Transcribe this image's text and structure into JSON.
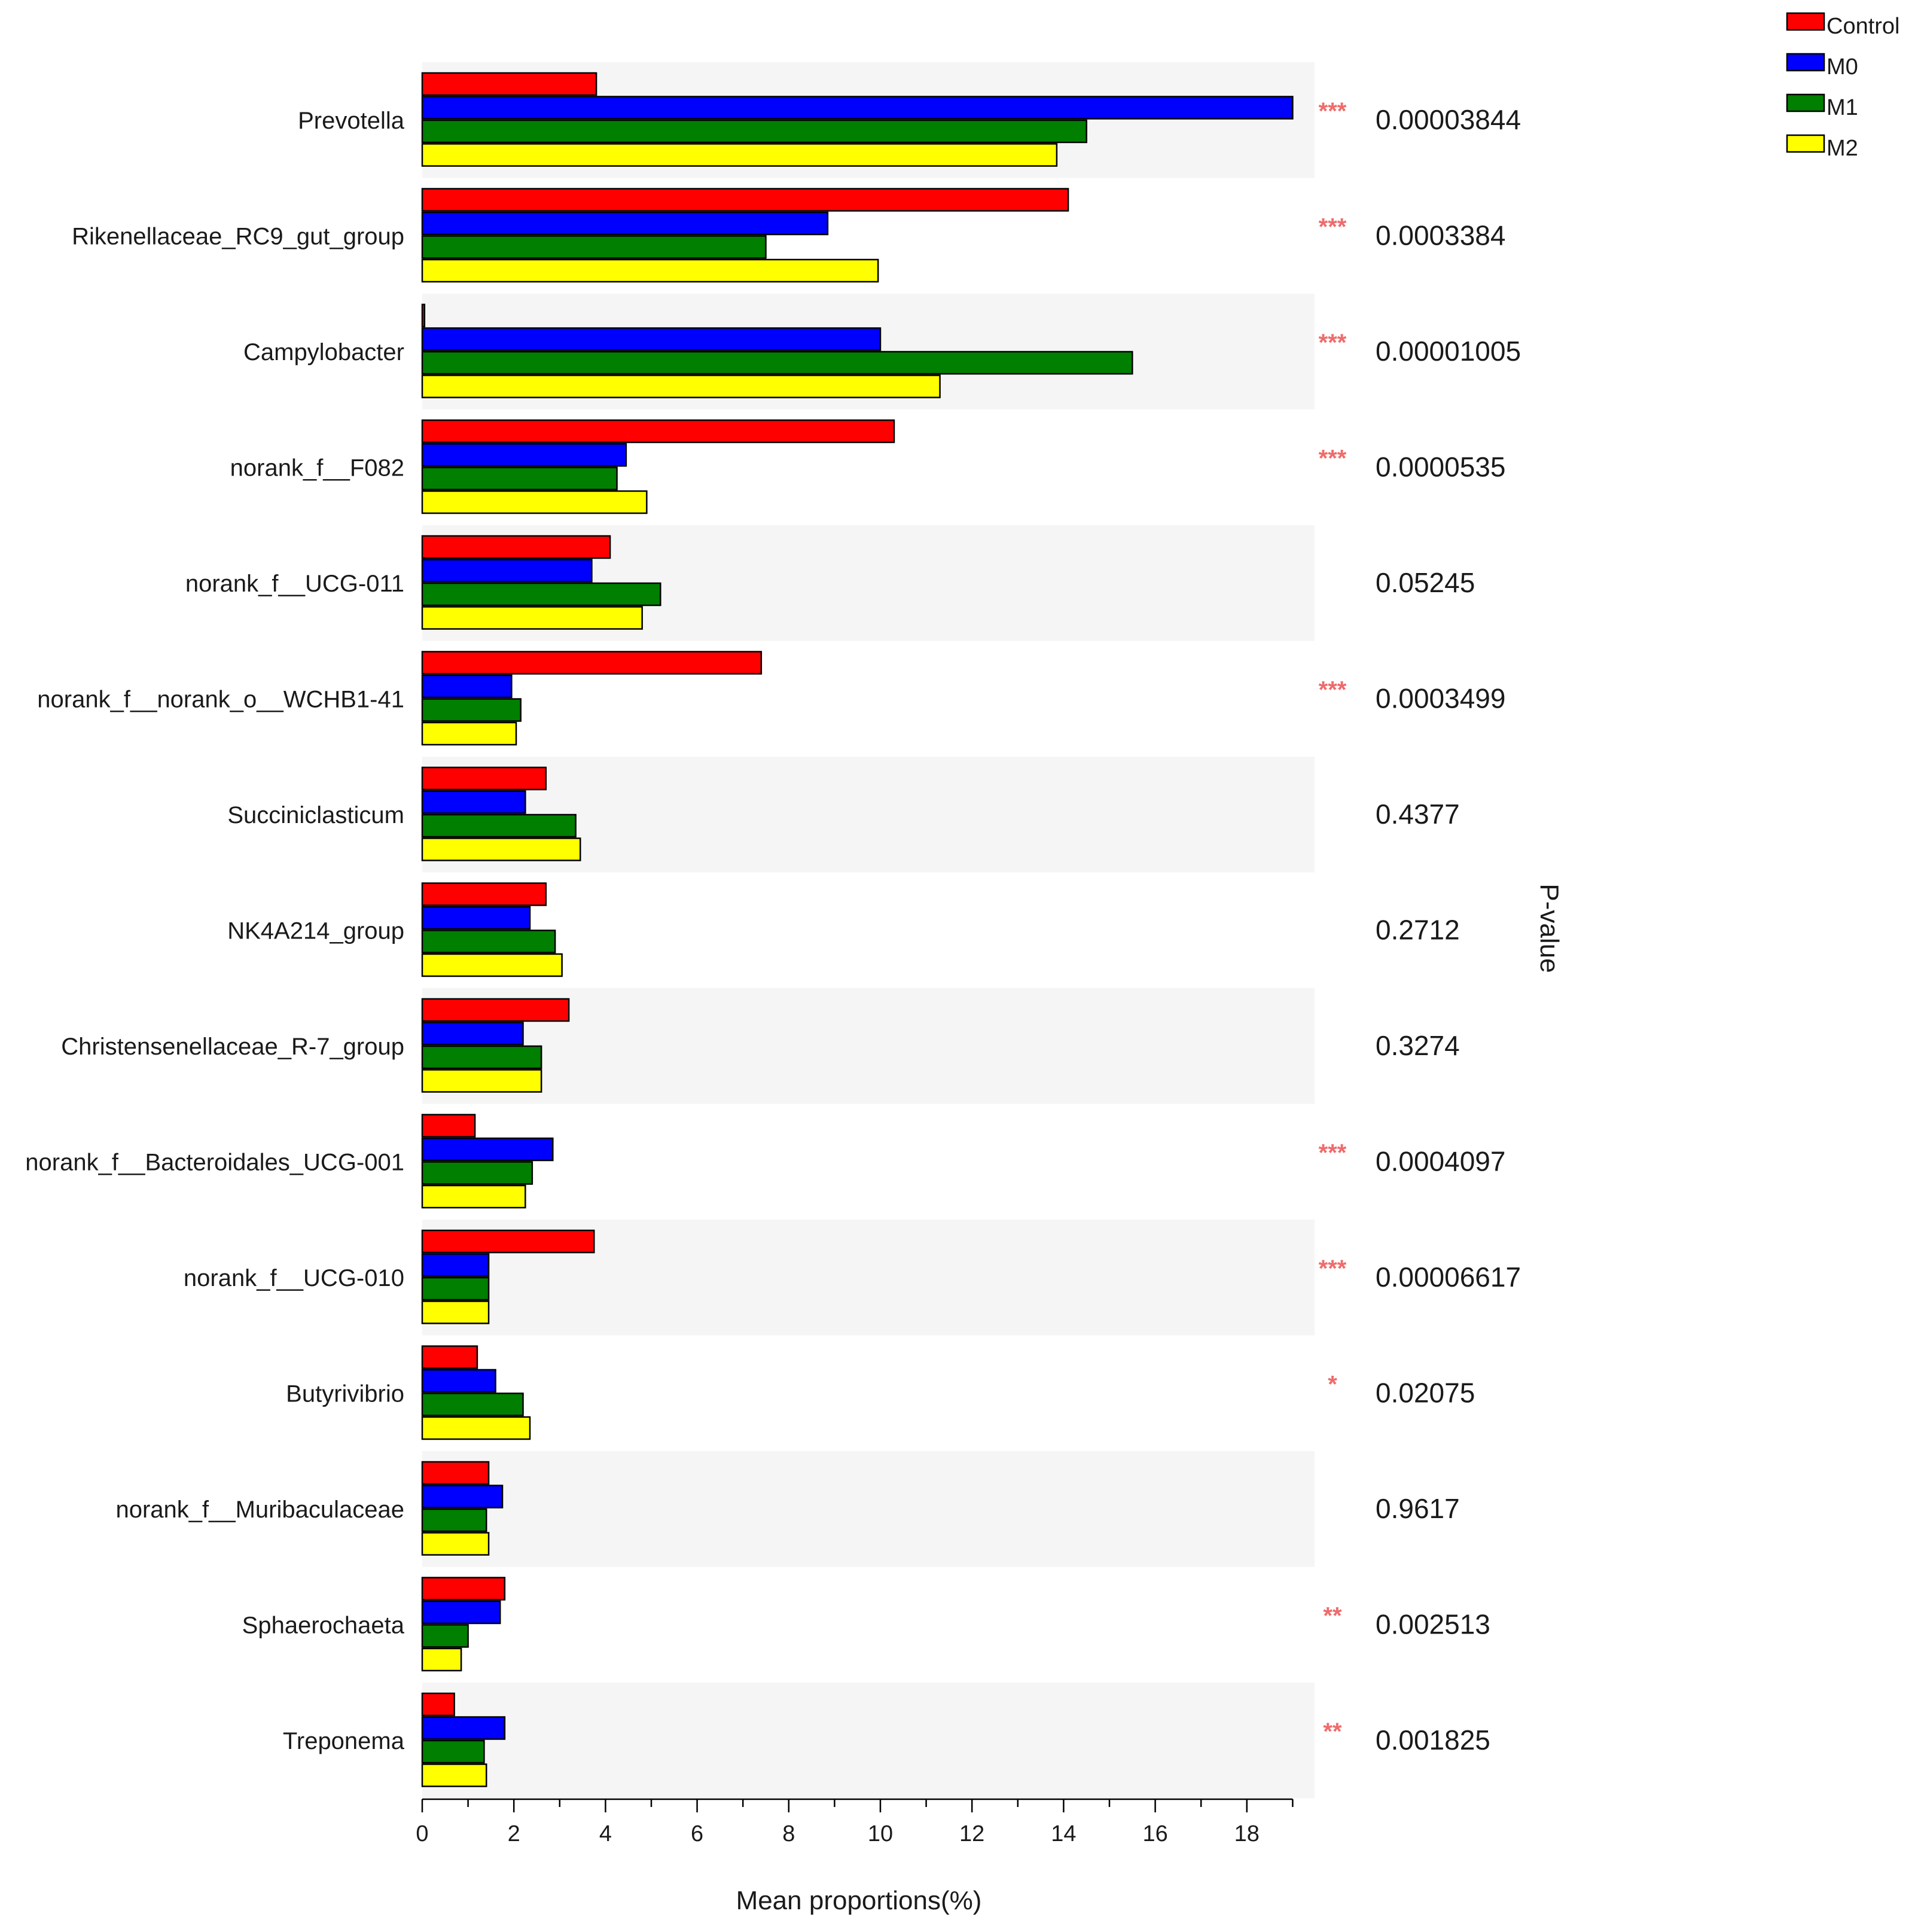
{
  "chart_data": {
    "type": "bar",
    "orientation": "horizontal",
    "xlabel": "Mean proportions(%)",
    "right_axis_label": "P-value",
    "xlim": [
      0,
      19
    ],
    "xticks": [
      0,
      2,
      4,
      6,
      8,
      10,
      12,
      14,
      16,
      18
    ],
    "xtick_labels": [
      "0",
      "2",
      "4",
      "6",
      "8",
      "10",
      "12",
      "14",
      "16",
      "18"
    ],
    "grid": false,
    "legend_position": "top-right",
    "colors": {
      "Control": "#ff0000",
      "M0": "#0000ff",
      "M1": "#007f00",
      "M2": "#ffff00",
      "stripe": "#f5f5f5",
      "stars": "#ef6b6b"
    },
    "categories": [
      "Prevotella",
      "Rikenellaceae_RC9_gut_group",
      "Campylobacter",
      "norank_f__F082",
      "norank_f__UCG-011",
      "norank_f__norank_o__WCHB1-41",
      "Succiniclasticum",
      "NK4A214_group",
      "Christensenellaceae_R-7_group",
      "norank_f__Bacteroidales_UCG-001",
      "norank_f__UCG-010",
      "Butyrivibrio",
      "norank_f__Muribaculaceae",
      "Sphaerochaeta",
      "Treponema"
    ],
    "series": [
      {
        "name": "Control",
        "values": [
          3.8,
          14.1,
          0.05,
          10.3,
          4.1,
          7.4,
          2.7,
          2.7,
          3.2,
          1.15,
          3.75,
          1.2,
          1.45,
          1.8,
          0.7
        ]
      },
      {
        "name": "M0",
        "values": [
          19.0,
          8.85,
          10.0,
          4.45,
          3.7,
          1.95,
          2.25,
          2.35,
          2.2,
          2.85,
          1.45,
          1.6,
          1.75,
          1.7,
          1.8
        ]
      },
      {
        "name": "M1",
        "values": [
          14.5,
          7.5,
          15.5,
          4.25,
          5.2,
          2.15,
          3.35,
          2.9,
          2.6,
          2.4,
          1.45,
          2.2,
          1.4,
          1.0,
          1.35
        ]
      },
      {
        "name": "M2",
        "values": [
          13.85,
          9.95,
          11.3,
          4.9,
          4.8,
          2.05,
          3.45,
          3.05,
          2.6,
          2.25,
          1.45,
          2.35,
          1.45,
          0.85,
          1.4
        ]
      }
    ],
    "significance": [
      "***",
      "***",
      "***",
      "***",
      "",
      "***",
      "",
      "",
      "",
      "***",
      "***",
      "*",
      "",
      "**",
      "**"
    ],
    "p_values": [
      "0.00003844",
      "0.0003384",
      "0.00001005",
      "0.0000535",
      "0.05245",
      "0.0003499",
      "0.4377",
      "0.2712",
      "0.3274",
      "0.0004097",
      "0.00006617",
      "0.02075",
      "0.9617",
      "0.002513",
      "0.001825"
    ]
  }
}
